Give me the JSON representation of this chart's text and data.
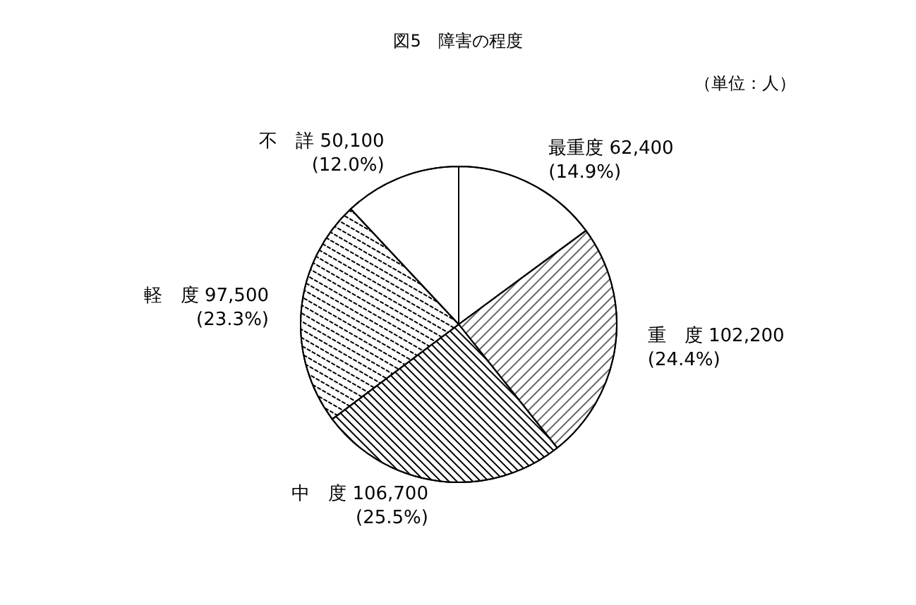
{
  "chart_data": {
    "type": "pie",
    "title": "図5　障害の程度",
    "annotations": [
      "（単位：人）"
    ],
    "categories": [
      "最重度",
      "重　度",
      "中　度",
      "軽　度",
      "不　詳"
    ],
    "values": [
      62400,
      102200,
      106700,
      97500,
      50100
    ],
    "value_labels": [
      "62,400\n(14.9%)",
      "102,200\n(24.4%)",
      "106,700\n(25.5%)",
      "97,500\n(23.3%)",
      "50,100\n(12.0%)"
    ],
    "colors": [
      "#ffffff",
      "#ffffff",
      "#ffffff",
      "#ffffff",
      "#ffffff"
    ],
    "legend": false
  }
}
